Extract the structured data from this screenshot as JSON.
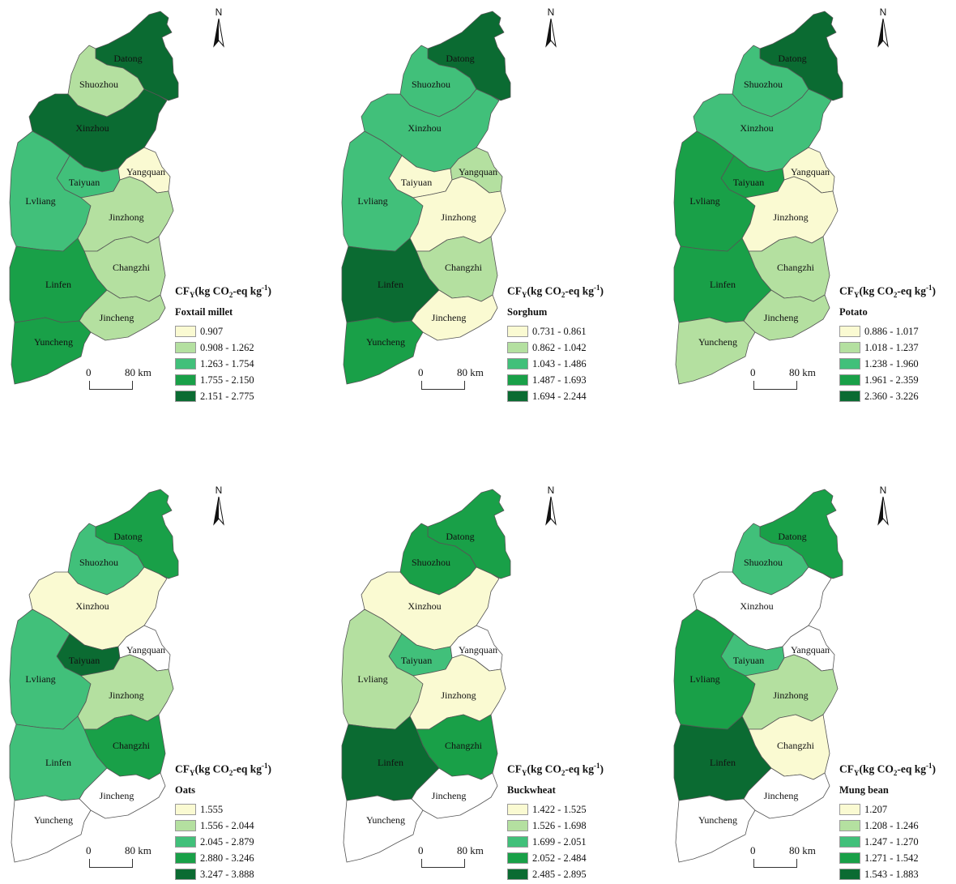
{
  "legend_title": {
    "main": "CF",
    "sub": "Y",
    "unit_pre": "(kg CO",
    "unit_sub": "2",
    "unit_mid": "-eq kg",
    "unit_sup": "-1",
    "unit_post": ")"
  },
  "north_label": "N",
  "scale": {
    "zero": "0",
    "distance": "80 km"
  },
  "colors": {
    "class1": "#fafad2",
    "class2": "#b4e0a0",
    "class3": "#41c07a",
    "class4": "#19a048",
    "class5": "#0b6b32",
    "no_data": "#ffffff"
  },
  "regions": [
    "Datong",
    "Shuozhou",
    "Xinzhou",
    "Taiyuan",
    "Yangquan",
    "Lvliang",
    "Jinzhong",
    "Changzhi",
    "Linfen",
    "Jincheng",
    "Yuncheng"
  ],
  "panels": [
    {
      "crop": "Foxtail millet",
      "legend": [
        "0.907",
        "0.908 - 1.262",
        "1.263 - 1.754",
        "1.755 - 2.150",
        "2.151 - 2.775"
      ],
      "classes": {
        "Datong": 5,
        "Shuozhou": 2,
        "Xinzhou": 5,
        "Taiyuan": 3,
        "Yangquan": 1,
        "Lvliang": 3,
        "Jinzhong": 2,
        "Changzhi": 2,
        "Linfen": 4,
        "Jincheng": 2,
        "Yuncheng": 4
      }
    },
    {
      "crop": "Sorghum",
      "legend": [
        "0.731 - 0.861",
        "0.862 - 1.042",
        "1.043 - 1.486",
        "1.487 - 1.693",
        "1.694 - 2.244"
      ],
      "classes": {
        "Datong": 5,
        "Shuozhou": 3,
        "Xinzhou": 3,
        "Taiyuan": 1,
        "Yangquan": 2,
        "Lvliang": 3,
        "Jinzhong": 1,
        "Changzhi": 2,
        "Linfen": 5,
        "Jincheng": 1,
        "Yuncheng": 4
      }
    },
    {
      "crop": "Potato",
      "legend": [
        "0.886 - 1.017",
        "1.018 - 1.237",
        "1.238 - 1.960",
        "1.961 - 2.359",
        "2.360 - 3.226"
      ],
      "classes": {
        "Datong": 5,
        "Shuozhou": 3,
        "Xinzhou": 3,
        "Taiyuan": 4,
        "Yangquan": 1,
        "Lvliang": 4,
        "Jinzhong": 1,
        "Changzhi": 2,
        "Linfen": 4,
        "Jincheng": 2,
        "Yuncheng": 2
      }
    },
    {
      "crop": "Oats",
      "legend": [
        "1.555",
        "1.556 - 2.044",
        "2.045 - 2.879",
        "2.880 - 3.246",
        "3.247 - 3.888"
      ],
      "classes": {
        "Datong": 4,
        "Shuozhou": 3,
        "Xinzhou": 1,
        "Taiyuan": 5,
        "Yangquan": 0,
        "Lvliang": 3,
        "Jinzhong": 2,
        "Changzhi": 4,
        "Linfen": 3,
        "Jincheng": 0,
        "Yuncheng": 0
      }
    },
    {
      "crop": "Buckwheat",
      "legend": [
        "1.422 - 1.525",
        "1.526 - 1.698",
        "1.699 - 2.051",
        "2.052 - 2.484",
        "2.485 - 2.895"
      ],
      "classes": {
        "Datong": 4,
        "Shuozhou": 4,
        "Xinzhou": 1,
        "Taiyuan": 3,
        "Yangquan": 0,
        "Lvliang": 2,
        "Jinzhong": 1,
        "Changzhi": 4,
        "Linfen": 5,
        "Jincheng": 0,
        "Yuncheng": 0
      }
    },
    {
      "crop": "Mung bean",
      "legend": [
        "1.207",
        "1.208 - 1.246",
        "1.247 - 1.270",
        "1.271 - 1.542",
        "1.543 - 1.883"
      ],
      "classes": {
        "Datong": 4,
        "Shuozhou": 3,
        "Xinzhou": 0,
        "Taiyuan": 3,
        "Yangquan": 0,
        "Lvliang": 4,
        "Jinzhong": 2,
        "Changzhi": 1,
        "Linfen": 5,
        "Jincheng": 0,
        "Yuncheng": 0
      }
    }
  ]
}
